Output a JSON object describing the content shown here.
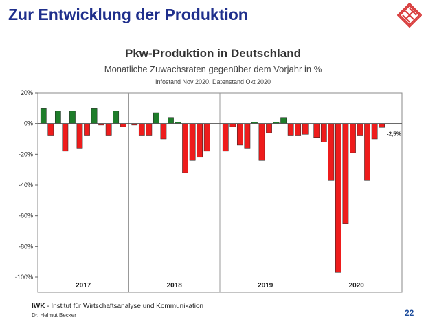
{
  "slide": {
    "title": "Zur Entwicklung der Produktion",
    "page_number": "22",
    "footer_org_abbr": "IWK",
    "footer_org_name": "- Institut für Wirtschaftsanalyse und Kommunikation",
    "footer_author": "Dr. Helmut Becker"
  },
  "colors": {
    "title": "#1f2f8c",
    "positive": "#1e7d2a",
    "negative": "#ee1c1c",
    "logo": "#d83a3a"
  },
  "chart_data": {
    "type": "bar",
    "title": "Pkw-Produktion in Deutschland",
    "subtitle": "Monatliche Zuwachsraten gegenüber dem Vorjahr in %",
    "note": "Infostand Nov 2020, Datenstand Okt 2020",
    "ylim": [
      -100,
      20
    ],
    "yticks": [
      20,
      0,
      -20,
      -40,
      -60,
      -80,
      -100
    ],
    "ytick_labels": [
      "20%",
      "0%",
      "-20%",
      "-40%",
      "-60%",
      "-80%",
      "-100%"
    ],
    "year_labels": [
      "2017",
      "2018",
      "2019",
      "2020"
    ],
    "series": [
      {
        "year": "2017",
        "values": [
          10,
          -8,
          8,
          -18,
          8,
          -16,
          -8,
          10,
          -1,
          -8,
          8,
          -2
        ]
      },
      {
        "year": "2018",
        "values": [
          -1,
          -8,
          -8,
          7,
          -10,
          4,
          1,
          -32,
          -24,
          -22,
          -18,
          null
        ]
      },
      {
        "year": "2019",
        "values": [
          -18,
          -2,
          -14,
          -16,
          1,
          -24,
          -6,
          1,
          4,
          -8,
          -8,
          -7
        ]
      },
      {
        "year": "2020",
        "values": [
          -9,
          -12,
          -37,
          -97,
          -65,
          -19,
          -8,
          -37,
          -10,
          -2.5,
          null,
          null
        ]
      }
    ],
    "annotation": {
      "year": "2020",
      "month_index": 9,
      "label": "-2,5%"
    }
  }
}
